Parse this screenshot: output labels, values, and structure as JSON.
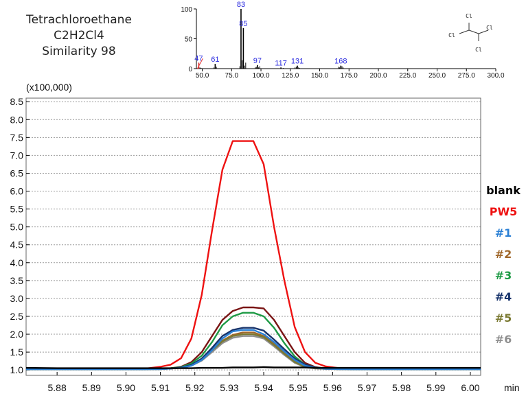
{
  "compound": {
    "name": "Tetrachloroethane",
    "formula": "C2H2Cl4",
    "similarity": "Similarity 98"
  },
  "chart_data": [
    {
      "type": "bar",
      "name_hint": "mass spectrum",
      "x": [
        47,
        61,
        83,
        85,
        97,
        117,
        131,
        168
      ],
      "values": [
        10,
        8,
        100,
        68,
        6,
        2,
        5,
        5
      ],
      "peak_labels": [
        "47",
        "61",
        "83",
        "85",
        "97",
        "117",
        "131",
        "168"
      ],
      "minor_x": [
        48,
        49,
        60,
        62,
        82,
        84,
        86,
        87,
        95,
        96,
        98,
        99,
        119,
        129,
        130,
        132,
        133,
        166,
        167,
        169,
        170
      ],
      "minor_values": [
        2,
        1,
        2,
        3,
        4,
        14,
        5,
        10,
        2,
        3,
        2,
        4,
        1,
        2,
        3,
        2,
        1,
        3,
        2,
        4,
        2
      ],
      "xlim": [
        45,
        300
      ],
      "ylim": [
        0,
        100
      ],
      "xticks": [
        "50.0",
        "75.0",
        "100.0",
        "125.0",
        "150.0",
        "175.0",
        "200.0",
        "225.0",
        "250.0",
        "275.0",
        "300.0"
      ],
      "yticks": [
        "0",
        "50",
        "100"
      ],
      "structure_atoms": [
        "Cl",
        "Cl",
        "Cl",
        "Cl"
      ]
    },
    {
      "type": "line",
      "scale_label": "(x100,000)",
      "x_unit": "min",
      "xlim": [
        5.871,
        6.003
      ],
      "ylim": [
        0.85,
        8.6
      ],
      "xticks": [
        "5.88",
        "5.89",
        "5.90",
        "5.91",
        "5.92",
        "5.93",
        "5.94",
        "5.95",
        "5.96",
        "5.97",
        "5.98",
        "5.99",
        "6.00"
      ],
      "yticks": [
        "1.0",
        "1.5",
        "2.0",
        "2.5",
        "3.0",
        "3.5",
        "4.0",
        "4.5",
        "5.0",
        "5.5",
        "6.0",
        "6.5",
        "7.0",
        "7.5",
        "8.0",
        "8.5"
      ],
      "grid": "horizontal dotted",
      "legend_placement": "right",
      "x": [
        5.871,
        5.88,
        5.89,
        5.9,
        5.905,
        5.91,
        5.913,
        5.916,
        5.919,
        5.922,
        5.925,
        5.928,
        5.931,
        5.934,
        5.937,
        5.94,
        5.943,
        5.946,
        5.949,
        5.952,
        5.955,
        5.958,
        5.962,
        5.966,
        5.97,
        5.98,
        5.99,
        6.003
      ],
      "series": [
        {
          "name": "blank",
          "color": "#000000",
          "values": [
            1.06,
            1.05,
            1.05,
            1.05,
            1.05,
            1.05,
            1.05,
            1.05,
            1.05,
            1.06,
            1.06,
            1.06,
            1.07,
            1.07,
            1.07,
            1.08,
            1.07,
            1.07,
            1.07,
            1.07,
            1.06,
            1.06,
            1.06,
            1.06,
            1.06,
            1.06,
            1.06,
            1.06
          ]
        },
        {
          "name": "PW5",
          "color": "#ee1111",
          "values": [
            1.02,
            1.02,
            1.02,
            1.03,
            1.03,
            1.09,
            1.15,
            1.33,
            1.88,
            3.1,
            4.9,
            6.6,
            7.4,
            7.4,
            7.4,
            6.75,
            5.0,
            3.5,
            2.2,
            1.5,
            1.2,
            1.1,
            1.05,
            1.04,
            1.03,
            1.03,
            1.03,
            1.03
          ]
        },
        {
          "name": "#1",
          "color": "#2a7fd4",
          "values": [
            1.02,
            1.02,
            1.02,
            1.02,
            1.02,
            1.02,
            1.04,
            1.06,
            1.12,
            1.28,
            1.55,
            1.88,
            2.08,
            2.12,
            2.12,
            2.0,
            1.78,
            1.52,
            1.28,
            1.12,
            1.06,
            1.03,
            1.02,
            1.02,
            1.02,
            1.02,
            1.02,
            1.02
          ]
        },
        {
          "name": "#2",
          "color": "#a0672a",
          "values": [
            1.02,
            1.02,
            1.02,
            1.02,
            1.02,
            1.03,
            1.04,
            1.07,
            1.14,
            1.3,
            1.58,
            1.82,
            1.98,
            2.05,
            2.05,
            1.95,
            1.74,
            1.47,
            1.24,
            1.1,
            1.05,
            1.03,
            1.02,
            1.02,
            1.02,
            1.02,
            1.02,
            1.02
          ]
        },
        {
          "name": "#3",
          "color": "#1e9a45",
          "values": [
            1.02,
            1.02,
            1.02,
            1.02,
            1.02,
            1.03,
            1.05,
            1.08,
            1.18,
            1.4,
            1.78,
            2.25,
            2.5,
            2.6,
            2.6,
            2.5,
            2.18,
            1.75,
            1.38,
            1.15,
            1.07,
            1.04,
            1.03,
            1.02,
            1.02,
            1.02,
            1.02,
            1.02
          ]
        },
        {
          "name": "#4",
          "color": "#17336b",
          "values": [
            1.02,
            1.02,
            1.02,
            1.02,
            1.02,
            1.03,
            1.04,
            1.07,
            1.14,
            1.32,
            1.62,
            1.95,
            2.12,
            2.18,
            2.18,
            2.1,
            1.85,
            1.58,
            1.32,
            1.15,
            1.07,
            1.04,
            1.03,
            1.02,
            1.02,
            1.02,
            1.02,
            1.02
          ]
        },
        {
          "name": "#5",
          "color": "#7b7a33",
          "values": [
            1.02,
            1.02,
            1.02,
            1.02,
            1.02,
            1.02,
            1.04,
            1.06,
            1.13,
            1.28,
            1.55,
            1.8,
            1.95,
            2.0,
            2.0,
            1.92,
            1.7,
            1.45,
            1.22,
            1.09,
            1.05,
            1.03,
            1.02,
            1.02,
            1.02,
            1.02,
            1.02,
            1.02
          ]
        },
        {
          "name": "#6",
          "color": "#8f8f8f",
          "values": [
            1.02,
            1.02,
            1.02,
            1.02,
            1.02,
            1.02,
            1.04,
            1.06,
            1.12,
            1.26,
            1.5,
            1.75,
            1.9,
            1.95,
            1.95,
            1.88,
            1.66,
            1.42,
            1.2,
            1.08,
            1.04,
            1.03,
            1.02,
            1.02,
            1.02,
            1.02,
            1.02,
            1.02
          ]
        },
        {
          "name": "",
          "color": "#7a1515",
          "values": [
            1.02,
            1.02,
            1.02,
            1.02,
            1.02,
            1.03,
            1.05,
            1.09,
            1.22,
            1.5,
            1.95,
            2.4,
            2.65,
            2.75,
            2.75,
            2.72,
            2.4,
            1.95,
            1.5,
            1.2,
            1.08,
            1.04,
            1.03,
            1.02,
            1.02,
            1.02,
            1.02,
            1.02
          ]
        }
      ]
    }
  ]
}
